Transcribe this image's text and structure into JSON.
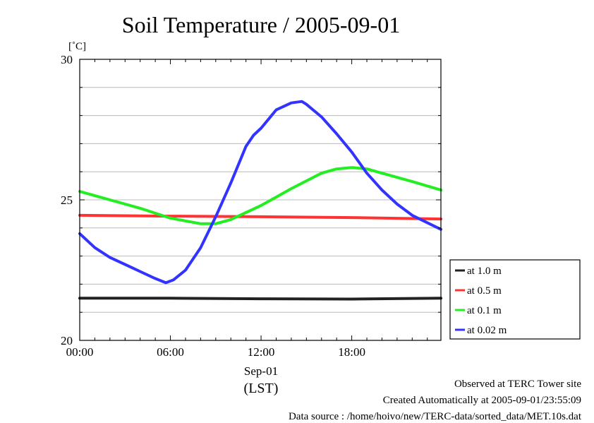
{
  "chart_data": {
    "type": "line",
    "title": "Soil Temperature / 2005-09-01",
    "ylabel": "[˚C]",
    "xlabel_date": "Sep-01",
    "xlabel_tz": "(LST)",
    "xlim": [
      0,
      23.9
    ],
    "ylim": [
      20,
      30
    ],
    "x_ticks": [
      0,
      6,
      12,
      18
    ],
    "x_tick_labels": [
      "00:00",
      "06:00",
      "12:00",
      "18:00"
    ],
    "y_ticks": [
      20,
      25,
      30
    ],
    "y_tick_labels": [
      "20",
      "25",
      "30"
    ],
    "grid": true,
    "legend_position": "right",
    "series": [
      {
        "name": "at 1.0 m",
        "color": "#222222",
        "x": [
          0,
          6,
          12,
          18,
          23.9
        ],
        "y": [
          21.5,
          21.5,
          21.48,
          21.47,
          21.5
        ]
      },
      {
        "name": "at 0.5 m",
        "color": "#ff3333",
        "x": [
          0,
          6,
          12,
          18,
          23.9
        ],
        "y": [
          24.45,
          24.42,
          24.4,
          24.37,
          24.32
        ]
      },
      {
        "name": "at 0.1 m",
        "color": "#22ee22",
        "x": [
          0,
          2,
          4,
          6,
          8,
          9,
          10,
          12,
          14,
          16,
          17,
          18,
          19,
          20,
          22,
          23.9
        ],
        "y": [
          25.3,
          25.0,
          24.7,
          24.35,
          24.15,
          24.15,
          24.3,
          24.8,
          25.4,
          25.95,
          26.1,
          26.15,
          26.1,
          25.95,
          25.65,
          25.35
        ]
      },
      {
        "name": "at 0.02 m",
        "color": "#3333ff",
        "x": [
          0,
          1,
          2,
          3,
          4,
          5,
          5.7,
          6.2,
          7,
          8,
          9,
          10,
          11,
          11.5,
          12,
          13,
          14,
          14.7,
          15,
          16,
          17,
          18,
          19,
          20,
          21,
          22,
          23.9
        ],
        "y": [
          23.8,
          23.3,
          22.95,
          22.7,
          22.45,
          22.2,
          22.05,
          22.15,
          22.5,
          23.3,
          24.4,
          25.6,
          26.9,
          27.3,
          27.55,
          28.2,
          28.45,
          28.5,
          28.4,
          27.95,
          27.35,
          26.7,
          25.95,
          25.35,
          24.85,
          24.45,
          23.95
        ]
      }
    ]
  },
  "footer": {
    "site": "Observed at TERC Tower site",
    "created": "Created Automatically at 2005-09-01/23:55:09",
    "source": "Data source : /home/hoivo/new/TERC-data/sorted_data/MET.10s.dat"
  }
}
